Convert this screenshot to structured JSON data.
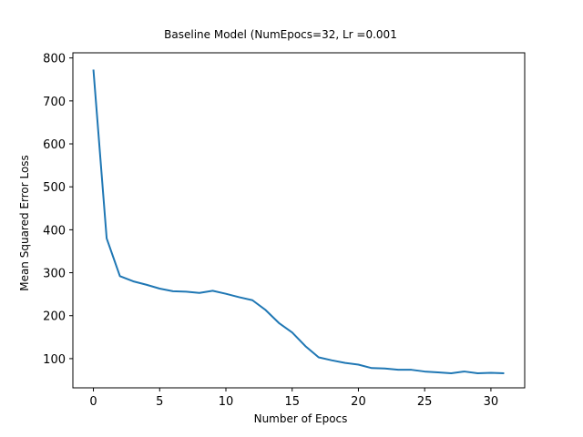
{
  "chart_data": {
    "type": "line",
    "title": "Baseline Model (NumEpocs=32, Lr =0.001",
    "xlabel": "Number of Epocs",
    "ylabel": "Mean Squared Error Loss",
    "xlim": [
      -1.55,
      32.55
    ],
    "ylim": [
      32,
      812
    ],
    "x_ticks": [
      0,
      5,
      10,
      15,
      20,
      25,
      30
    ],
    "y_ticks": [
      100,
      200,
      300,
      400,
      500,
      600,
      700,
      800
    ],
    "grid": false,
    "legend": "none",
    "series": [
      {
        "color": "#1f77b4",
        "x": [
          0,
          1,
          2,
          3,
          4,
          5,
          6,
          7,
          8,
          9,
          10,
          11,
          12,
          13,
          14,
          15,
          16,
          17,
          18,
          19,
          20,
          21,
          22,
          23,
          24,
          25,
          26,
          27,
          28,
          29,
          30,
          31
        ],
        "values": [
          773,
          380,
          292,
          280,
          272,
          263,
          257,
          256,
          253,
          258,
          251,
          243,
          236,
          213,
          183,
          161,
          129,
          103,
          96,
          90,
          86,
          78,
          77,
          74,
          74,
          70,
          68,
          66,
          70,
          66,
          67,
          66
        ]
      }
    ]
  }
}
